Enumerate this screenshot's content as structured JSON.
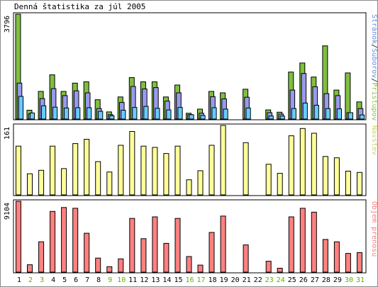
{
  "title": "Denná štatistika za júl 2005",
  "colors": {
    "pristupov": "#7fbf3f",
    "suborov": "#9999ee",
    "stranok": "#66ccff",
    "navstev": "#ffff99",
    "prenos": "#ff8080",
    "weekend_day": "#60b000",
    "weekday_day": "#000000",
    "label_green": "#90c050",
    "label_blue": "#6090e0",
    "label_yellow": "#d0d070",
    "label_red": "#f08080"
  },
  "chart_data": [
    {
      "type": "bar",
      "panel": "top",
      "max_label": "3796",
      "ylim": [
        0,
        3796
      ],
      "right_labels": [
        "Stránok",
        "Súborov",
        "Prístupov"
      ],
      "categories": [
        "1",
        "2",
        "3",
        "4",
        "5",
        "6",
        "7",
        "8",
        "9",
        "10",
        "11",
        "12",
        "13",
        "14",
        "15",
        "16",
        "17",
        "18",
        "19",
        "20",
        "21",
        "22",
        "23",
        "24",
        "25",
        "26",
        "27",
        "28",
        "29",
        "30",
        "31"
      ],
      "series": [
        {
          "name": "Prístupov",
          "values": [
            3796,
            320,
            1000,
            1600,
            1000,
            1300,
            1350,
            700,
            260,
            800,
            1500,
            1350,
            1350,
            800,
            1230,
            210,
            360,
            1000,
            950,
            0,
            1080,
            0,
            330,
            250,
            1700,
            2030,
            1520,
            2650,
            1050,
            1670,
            620
          ]
        },
        {
          "name": "Súborov",
          "values": [
            1300,
            190,
            740,
            1100,
            850,
            1020,
            950,
            380,
            160,
            600,
            1180,
            1090,
            1140,
            650,
            950,
            160,
            210,
            810,
            730,
            0,
            790,
            0,
            230,
            180,
            1050,
            1650,
            1170,
            920,
            850,
            230,
            380
          ]
        },
        {
          "name": "Stránok",
          "values": [
            820,
            220,
            480,
            430,
            400,
            410,
            410,
            280,
            120,
            320,
            420,
            460,
            390,
            330,
            420,
            160,
            130,
            410,
            360,
            0,
            400,
            0,
            110,
            110,
            380,
            580,
            500,
            380,
            370,
            230,
            150
          ]
        }
      ]
    },
    {
      "type": "bar",
      "panel": "middle",
      "max_label": "161",
      "ylim": [
        0,
        161
      ],
      "right_labels": [
        "Návštev"
      ],
      "categories": [
        "1",
        "2",
        "3",
        "4",
        "5",
        "6",
        "7",
        "8",
        "9",
        "10",
        "11",
        "12",
        "13",
        "14",
        "15",
        "16",
        "17",
        "18",
        "19",
        "20",
        "21",
        "22",
        "23",
        "24",
        "25",
        "26",
        "27",
        "28",
        "29",
        "30",
        "31"
      ],
      "series": [
        {
          "name": "Návštev",
          "values": [
            113,
            49,
            57,
            113,
            61,
            119,
            129,
            77,
            53,
            115,
            147,
            113,
            110,
            96,
            113,
            35,
            56,
            115,
            161,
            0,
            121,
            0,
            71,
            50,
            137,
            154,
            143,
            89,
            86,
            55,
            52
          ]
        }
      ]
    },
    {
      "type": "bar",
      "panel": "bottom",
      "max_label": "9104",
      "ylim": [
        0,
        9104
      ],
      "right_labels": [
        "Objem prenosu"
      ],
      "categories": [
        "1",
        "2",
        "3",
        "4",
        "5",
        "6",
        "7",
        "8",
        "9",
        "10",
        "11",
        "12",
        "13",
        "14",
        "15",
        "16",
        "17",
        "18",
        "19",
        "20",
        "21",
        "22",
        "23",
        "24",
        "25",
        "26",
        "27",
        "28",
        "29",
        "30",
        "31"
      ],
      "series": [
        {
          "name": "Objem prenosu",
          "values": [
            9104,
            950,
            3900,
            7800,
            8300,
            8200,
            5000,
            1800,
            700,
            1700,
            6900,
            4300,
            7100,
            3700,
            6900,
            2000,
            900,
            5100,
            7200,
            0,
            3500,
            0,
            1400,
            500,
            7100,
            8200,
            7700,
            4200,
            3900,
            2400,
            2500
          ]
        }
      ]
    }
  ],
  "days": [
    {
      "label": "1",
      "weekend": false
    },
    {
      "label": "2",
      "weekend": true
    },
    {
      "label": "3",
      "weekend": true
    },
    {
      "label": "4",
      "weekend": false
    },
    {
      "label": "5",
      "weekend": false
    },
    {
      "label": "6",
      "weekend": false
    },
    {
      "label": "7",
      "weekend": false
    },
    {
      "label": "8",
      "weekend": false
    },
    {
      "label": "9",
      "weekend": true
    },
    {
      "label": "10",
      "weekend": true
    },
    {
      "label": "11",
      "weekend": false
    },
    {
      "label": "12",
      "weekend": false
    },
    {
      "label": "13",
      "weekend": false
    },
    {
      "label": "14",
      "weekend": false
    },
    {
      "label": "15",
      "weekend": false
    },
    {
      "label": "16",
      "weekend": true
    },
    {
      "label": "17",
      "weekend": true
    },
    {
      "label": "18",
      "weekend": false
    },
    {
      "label": "19",
      "weekend": false
    },
    {
      "label": "20",
      "weekend": false
    },
    {
      "label": "21",
      "weekend": false
    },
    {
      "label": "22",
      "weekend": false
    },
    {
      "label": "23",
      "weekend": true
    },
    {
      "label": "24",
      "weekend": true
    },
    {
      "label": "25",
      "weekend": false
    },
    {
      "label": "26",
      "weekend": false
    },
    {
      "label": "27",
      "weekend": false
    },
    {
      "label": "28",
      "weekend": false
    },
    {
      "label": "29",
      "weekend": false
    },
    {
      "label": "30",
      "weekend": true
    },
    {
      "label": "31",
      "weekend": true
    }
  ]
}
